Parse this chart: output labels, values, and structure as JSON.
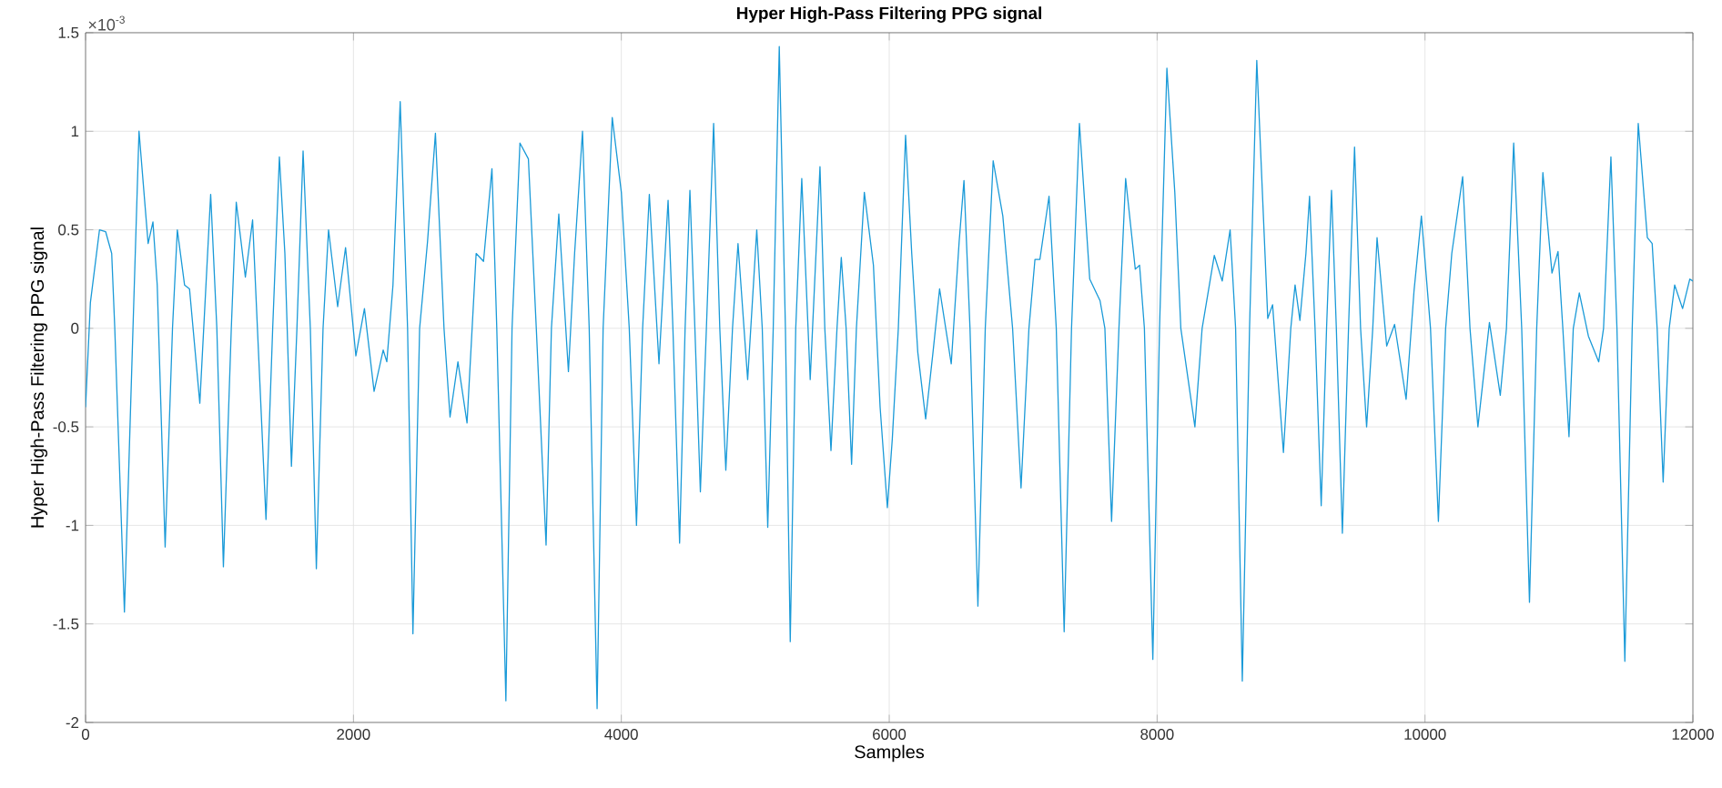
{
  "chart_data": {
    "type": "line",
    "title": "Hyper High-Pass Filtering PPG signal",
    "xlabel": "Samples",
    "ylabel": "Hyper High-Pass Filtering PPG signal",
    "annotations": [
      "×10$^{-3}$"
    ],
    "xlim": [
      0,
      12000
    ],
    "xticks": [
      0,
      2000,
      4000,
      6000,
      8000,
      10000,
      12000
    ],
    "ylim": [
      -2,
      1.5
    ],
    "yticks": [
      -2,
      -1.5,
      -1,
      -0.5,
      0,
      0.5,
      1,
      1.5
    ],
    "grid": true,
    "line_style": "solid",
    "series": [
      {
        "color": "#1a9ad8",
        "x": [
          0,
          36,
          104,
          150,
          195,
          218,
          290,
          354,
          399,
          467,
          503,
          535,
          594,
          649,
          685,
          739,
          776,
          853,
          934,
          980,
          1029,
          1088,
          1125,
          1193,
          1247,
          1283,
          1347,
          1397,
          1447,
          1488,
          1537,
          1578,
          1624,
          1678,
          1723,
          1773,
          1814,
          1882,
          1941,
          2018,
          2082,
          2154,
          2222,
          2249,
          2295,
          2349,
          2404,
          2444,
          2494,
          2553,
          2612,
          2676,
          2721,
          2780,
          2848,
          2916,
          2971,
          3034,
          3070,
          3138,
          3184,
          3243,
          3306,
          3365,
          3438,
          3478,
          3533,
          3605,
          3651,
          3710,
          3760,
          3819,
          3864,
          3932,
          4000,
          4059,
          4113,
          4159,
          4209,
          4281,
          4349,
          4385,
          4435,
          4476,
          4512,
          4549,
          4590,
          4635,
          4689,
          4735,
          4780,
          4830,
          4871,
          4943,
          5011,
          5052,
          5093,
          5134,
          5179,
          5225,
          5261,
          5302,
          5347,
          5410,
          5483,
          5519,
          5565,
          5610,
          5642,
          5678,
          5719,
          5755,
          5814,
          5882,
          5932,
          5986,
          6023,
          6068,
          6122,
          6168,
          6213,
          6272,
          6327,
          6376,
          6463,
          6522,
          6558,
          6603,
          6662,
          6717,
          6776,
          6848,
          6921,
          6984,
          7043,
          7088,
          7125,
          7193,
          7247,
          7306,
          7361,
          7420,
          7497,
          7574,
          7610,
          7660,
          7715,
          7765,
          7837,
          7869,
          7905,
          7968,
          8018,
          8073,
          8132,
          8177,
          8282,
          8336,
          8427,
          8486,
          8545,
          8586,
          8636,
          8690,
          8744,
          8826,
          8862,
          8943,
          8998,
          9030,
          9066,
          9111,
          9138,
          9179,
          9225,
          9265,
          9302,
          9338,
          9383,
          9429,
          9474,
          9519,
          9564,
          9610,
          9642,
          9714,
          9773,
          9859,
          9918,
          9973,
          10041,
          10100,
          10154,
          10200,
          10281,
          10336,
          10395,
          10481,
          10562,
          10608,
          10662,
          10722,
          10780,
          10834,
          10880,
          10948,
          10993,
          11029,
          11075,
          11107,
          11152,
          11220,
          11297,
          11333,
          11388,
          11433,
          11492,
          11547,
          11592,
          11660,
          11696,
          11733,
          11778,
          11823,
          11864,
          11923,
          11977,
          12000
        ],
        "values": [
          -0.4,
          0.13,
          0.5,
          0.49,
          0.38,
          0.0,
          -1.44,
          0,
          1.0,
          0.43,
          0.54,
          0.22,
          -1.11,
          0,
          0.5,
          0.22,
          0.2,
          -0.38,
          0.68,
          0,
          -1.21,
          0,
          0.64,
          0.26,
          0.55,
          0,
          -0.97,
          0,
          0.87,
          0.38,
          -0.7,
          0,
          0.9,
          0,
          -1.22,
          0,
          0.5,
          0.11,
          0.41,
          -0.14,
          0.1,
          -0.32,
          -0.11,
          -0.17,
          0.22,
          1.15,
          0,
          -1.55,
          0,
          0.44,
          0.99,
          0,
          -0.45,
          -0.17,
          -0.48,
          0.38,
          0.34,
          0.81,
          0,
          -1.89,
          0,
          0.94,
          0.86,
          0,
          -1.1,
          0,
          0.58,
          -0.22,
          0.38,
          1.0,
          0,
          -1.93,
          0,
          1.07,
          0.69,
          0,
          -1.0,
          0,
          0.68,
          -0.18,
          0.65,
          0,
          -1.09,
          0,
          0.7,
          0,
          -0.83,
          0,
          1.04,
          0,
          -0.72,
          0,
          0.43,
          -0.26,
          0.5,
          0,
          -1.01,
          0,
          1.43,
          0,
          -1.59,
          0,
          0.76,
          -0.26,
          0.82,
          0,
          -0.62,
          0,
          0.36,
          0,
          -0.69,
          0,
          0.69,
          0.32,
          -0.4,
          -0.91,
          -0.56,
          0,
          0.98,
          0.38,
          -0.12,
          -0.46,
          -0.12,
          0.2,
          -0.18,
          0.44,
          0.75,
          0,
          -1.41,
          0,
          0.85,
          0.57,
          0,
          -0.81,
          0,
          0.35,
          0.35,
          0.67,
          0,
          -1.54,
          0,
          1.04,
          0.25,
          0.14,
          0,
          -0.98,
          0,
          0.76,
          0.3,
          0.32,
          0,
          -1.68,
          0,
          1.32,
          0.69,
          0,
          -0.5,
          0,
          0.37,
          0.24,
          0.5,
          0,
          -1.79,
          0,
          1.36,
          0.05,
          0.12,
          -0.63,
          0,
          0.22,
          0.04,
          0.38,
          0.67,
          0,
          -0.9,
          0,
          0.7,
          0,
          -1.04,
          0,
          0.92,
          0,
          -0.5,
          0,
          0.46,
          -0.09,
          0.02,
          -0.36,
          0.19,
          0.57,
          0,
          -0.98,
          0,
          0.38,
          0.77,
          0,
          -0.5,
          0.03,
          -0.34,
          0,
          0.94,
          0,
          -1.39,
          0,
          0.79,
          0.28,
          0.39,
          0,
          -0.55,
          0,
          0.18,
          -0.04,
          -0.17,
          0,
          0.87,
          0,
          -1.69,
          0,
          1.04,
          0.46,
          0.43,
          0,
          -0.78,
          0,
          0.22,
          0.1,
          0.25,
          0.24
        ]
      }
    ]
  }
}
